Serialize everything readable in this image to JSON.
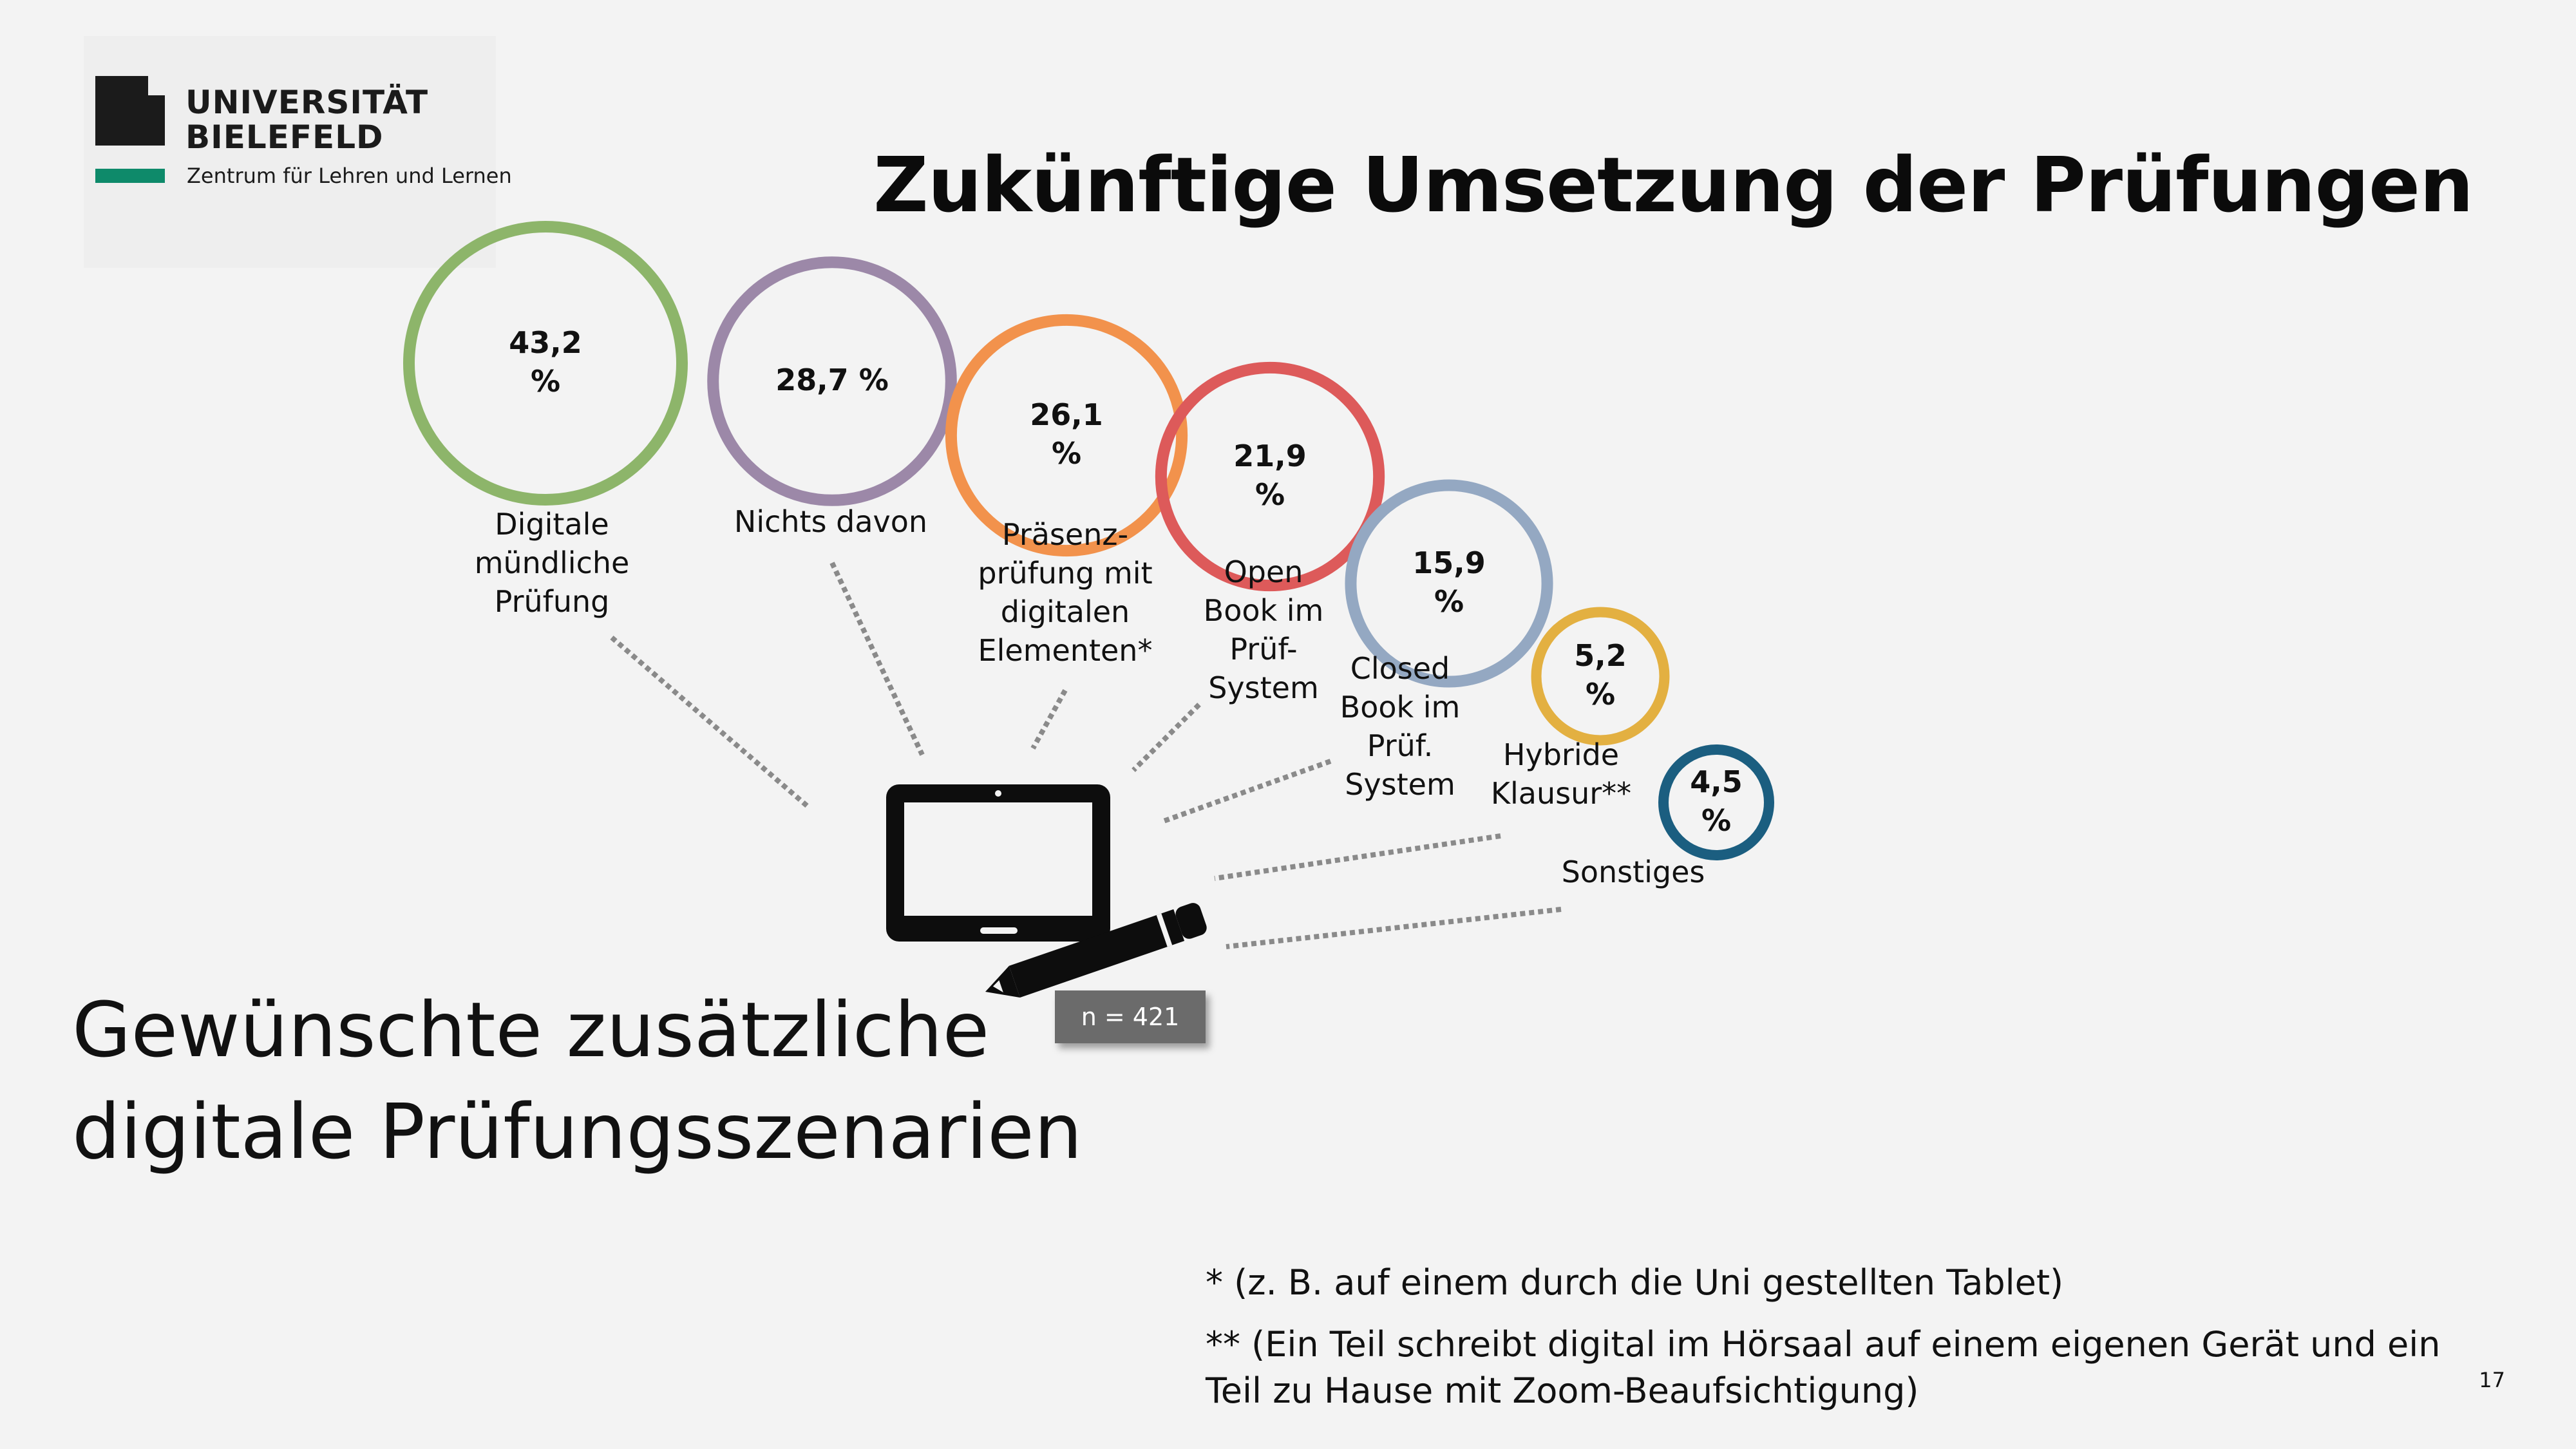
{
  "logo": {
    "line1": "UNIVERSITÄT",
    "line2": "BIELEFELD",
    "subtitle": "Zentrum für Lehren und Lernen",
    "accent_color": "#0e8a6a"
  },
  "title": "Zukünftige Umsetzung der Prüfungen",
  "subtitle_lines": [
    "Gewünschte zusätzliche",
    "digitale Prüfungsszenarien"
  ],
  "n_label": "n = 421",
  "device_icon": "tablet-with-pen-icon",
  "chart_data": {
    "type": "bubble",
    "unit": "%",
    "categories": [
      "Digitale mündliche Prüfung",
      "Nichts davon",
      "Präsenz-prüfung mit digitalen Elementen*",
      "Open Book im Prüf-System",
      "Closed Book im Prüf. System",
      "Hybride Klausur**",
      "Sonstiges"
    ],
    "values": [
      43.2,
      28.7,
      26.1,
      21.9,
      15.9,
      5.2,
      4.5
    ],
    "bubbles": [
      {
        "value_lines": [
          "43,2",
          "%"
        ],
        "label_lines": [
          "Digitale",
          "mündliche",
          "Prüfung"
        ],
        "color": "#8db56a"
      },
      {
        "value_lines": [
          "28,7 %"
        ],
        "label_lines": [
          "Nichts davon"
        ],
        "color": "#9c88a8"
      },
      {
        "value_lines": [
          "26,1",
          "%"
        ],
        "label_lines": [
          "Präsenz-",
          "prüfung mit",
          "digitalen",
          "Elementen*"
        ],
        "color": "#f2924c"
      },
      {
        "value_lines": [
          "21,9",
          "%"
        ],
        "label_lines": [
          "Open",
          "Book im",
          "Prüf-",
          "System"
        ],
        "color": "#dd5a5a"
      },
      {
        "value_lines": [
          "15,9",
          "%"
        ],
        "label_lines": [
          "Closed",
          "Book im",
          "Prüf.",
          "System"
        ],
        "color": "#94a8c2"
      },
      {
        "value_lines": [
          "5,2",
          "%"
        ],
        "label_lines": [
          "Hybride",
          "Klausur**"
        ],
        "color": "#e3b041"
      },
      {
        "value_lines": [
          "4,5",
          "%"
        ],
        "label_lines": [
          "Sonstiges"
        ],
        "color": "#1b5e80"
      }
    ]
  },
  "footnotes": [
    "* (z. B. auf einem durch die Uni gestellten Tablet)",
    "** (Ein Teil schreibt digital im Hörsaal auf einem eigenen Gerät und ein Teil zu Hause mit Zoom-Beaufsichtigung)"
  ],
  "page_number": "17"
}
